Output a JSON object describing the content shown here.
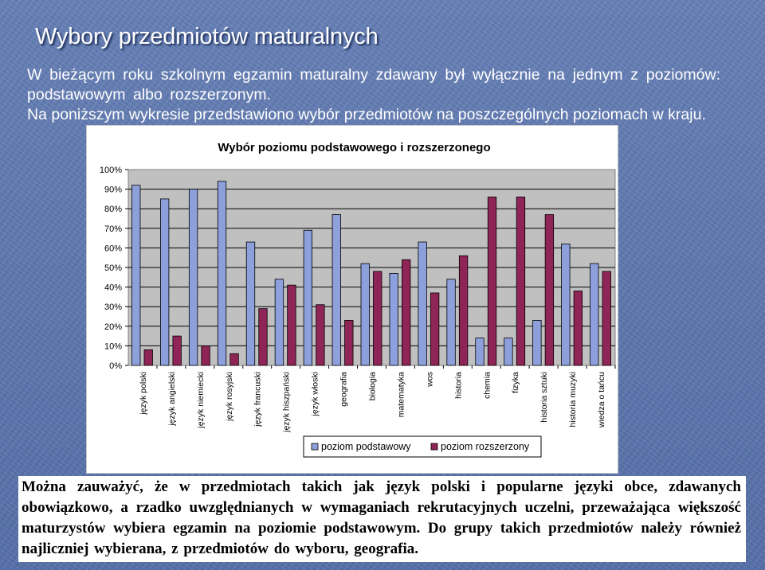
{
  "slide": {
    "title": "Wybory przedmiotów maturalnych",
    "paragraph1": "W bieżącym roku szkolnym egzamin maturalny zdawany był wyłącznie na jednym z poziomów: podstawowym albo rozszerzonym.",
    "paragraph2": "Na poniższym wykresie przedstawiono wybór przedmiotów na poszczególnych poziomach w kraju.",
    "caption": "Można zauważyć, że w przedmiotach takich jak język polski i popularne języki obce, zdawanych obowiązkowo, a rzadko uwzględnianych w wymaganiach rekrutacyjnych uczelni, przeważająca większość maturzystów wybiera egzamin na poziomie podstawowym. Do grupy takich przedmiotów należy również najliczniej wybierana, z przedmiotów do wyboru, geografia."
  },
  "chart_data": {
    "type": "bar",
    "title": "Wybór poziomu podstawowego i rozszerzonego",
    "categories": [
      "język polski",
      "język angielski",
      "język niemiecki",
      "język rosyjski",
      "język francuski",
      "język hiszpański",
      "język włoski",
      "geografia",
      "biologia",
      "matematyka",
      "wos",
      "historia",
      "chemia",
      "fizyka",
      "historia sztuki",
      "historia muzyki",
      "wiedza o tańcu"
    ],
    "series": [
      {
        "name": "poziom podstawowy",
        "color": "#8da0dc",
        "values": [
          92,
          85,
          90,
          94,
          63,
          44,
          69,
          77,
          52,
          47,
          63,
          44,
          14,
          14,
          23,
          62,
          52
        ]
      },
      {
        "name": "poziom rozszerzony",
        "color": "#8f2456",
        "values": [
          8,
          15,
          10,
          6,
          29,
          41,
          31,
          23,
          48,
          54,
          37,
          56,
          86,
          86,
          77,
          38,
          48
        ]
      }
    ],
    "y_ticks": [
      "0%",
      "10%",
      "20%",
      "30%",
      "40%",
      "50%",
      "60%",
      "70%",
      "80%",
      "90%",
      "100%"
    ],
    "ylim": [
      0,
      100
    ],
    "grid": true,
    "legend_position": "bottom",
    "plot_background": "#c0c0c0"
  }
}
